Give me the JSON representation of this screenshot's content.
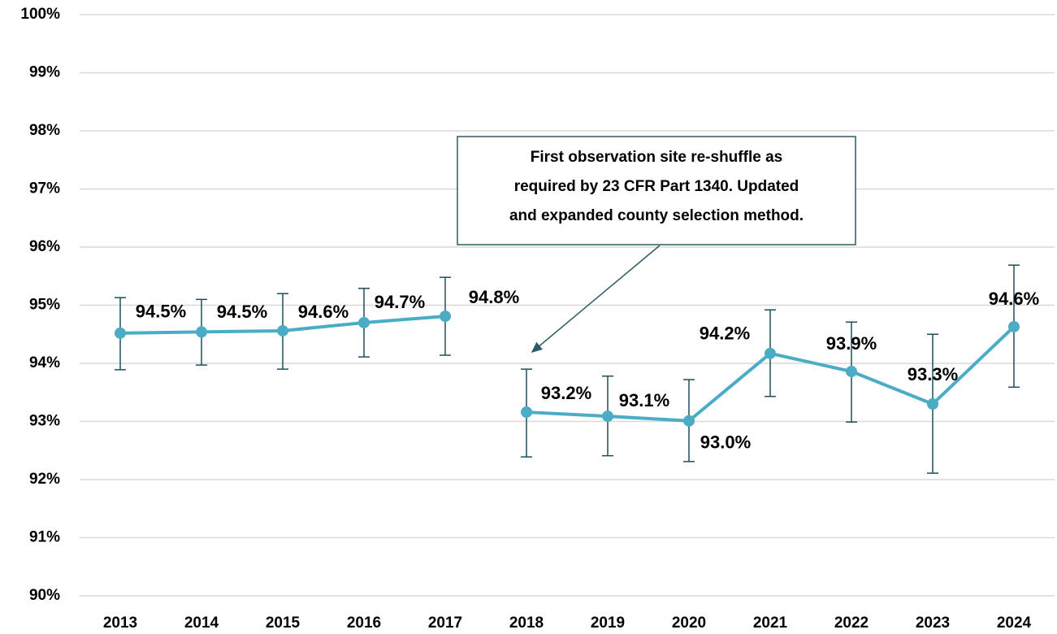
{
  "chart_data": {
    "type": "line",
    "categories": [
      "2013",
      "2014",
      "2015",
      "2016",
      "2017",
      "2018",
      "2019",
      "2020",
      "2021",
      "2022",
      "2023",
      "2024"
    ],
    "series": [
      {
        "color": "#4bacc6",
        "values": [
          94.52,
          94.54,
          94.56,
          94.7,
          94.81,
          93.16,
          93.09,
          93.01,
          94.17,
          93.86,
          93.3,
          94.63
        ],
        "value_labels": [
          "94.5%",
          "94.5%",
          "94.6%",
          "94.7%",
          "94.8%",
          "93.2%",
          "93.1%",
          "93.0%",
          "94.2%",
          "93.9%",
          "93.3%",
          "94.6%"
        ],
        "upper": [
          95.13,
          95.1,
          95.2,
          95.29,
          95.48,
          93.9,
          93.78,
          93.72,
          94.92,
          94.71,
          94.5,
          95.69
        ],
        "lower": [
          93.89,
          93.97,
          93.9,
          94.11,
          94.14,
          92.39,
          92.41,
          92.31,
          93.43,
          92.99,
          92.11,
          93.59
        ],
        "error_color": "#1f4e5a"
      }
    ],
    "ylim": [
      90,
      100
    ],
    "yticks": [
      {
        "value": 90,
        "label": "90%"
      },
      {
        "value": 91,
        "label": "91%"
      },
      {
        "value": 92,
        "label": "92%"
      },
      {
        "value": 93,
        "label": "93%"
      },
      {
        "value": 94,
        "label": "94%"
      },
      {
        "value": 95,
        "label": "95%"
      },
      {
        "value": 96,
        "label": "96%"
      },
      {
        "value": 97,
        "label": "97%"
      },
      {
        "value": 98,
        "label": "98%"
      },
      {
        "value": 99,
        "label": "99%"
      },
      {
        "value": 100,
        "label": "100%"
      }
    ],
    "grid": true,
    "annotation": [
      "First observation site re-shuffle as",
      "required by 23 CFR Part 1340. Updated",
      "and expanded county selection method."
    ]
  }
}
